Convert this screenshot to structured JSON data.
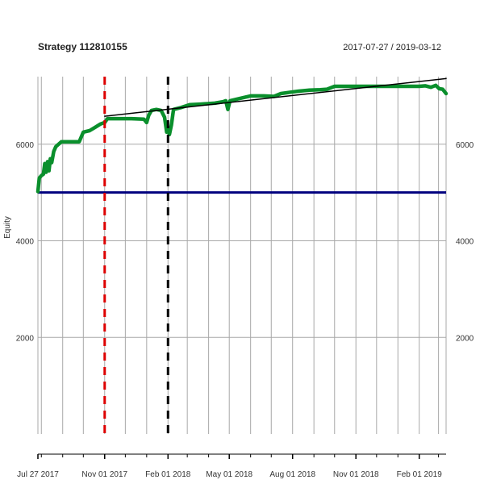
{
  "chart_data": {
    "type": "line",
    "title": "Strategy 112810155",
    "date_range": "2017-07-27 / 2019-03-12",
    "ylabel": "Equity",
    "xlabel": "",
    "x_start": "2017-07-27",
    "x_end": "2019-03-12",
    "ylim": [
      0,
      7400
    ],
    "yticks": [
      2000,
      4000,
      6000
    ],
    "ytick_labels": [
      "2000",
      "4000",
      "6000"
    ],
    "xticks": [
      "2017-07-27",
      "2017-11-01",
      "2018-02-01",
      "2018-05-01",
      "2018-08-01",
      "2018-11-01",
      "2019-02-01"
    ],
    "xtick_labels": [
      "Jul 27 2017",
      "Nov 01 2017",
      "Feb 01 2018",
      "May 01 2018",
      "Aug 01 2018",
      "Nov 01 2018",
      "Feb 01 2019"
    ],
    "grid": true,
    "series": [
      {
        "color": "#0a8f2c",
        "points": [
          [
            "2017-07-27",
            5020
          ],
          [
            "2017-07-29",
            5300
          ],
          [
            "2017-08-01",
            5350
          ],
          [
            "2017-08-04",
            5380
          ],
          [
            "2017-08-06",
            5600
          ],
          [
            "2017-08-08",
            5420
          ],
          [
            "2017-08-10",
            5640
          ],
          [
            "2017-08-12",
            5450
          ],
          [
            "2017-08-14",
            5700
          ],
          [
            "2017-08-16",
            5620
          ],
          [
            "2017-08-19",
            5850
          ],
          [
            "2017-08-22",
            5950
          ],
          [
            "2017-08-26",
            6000
          ],
          [
            "2017-08-30",
            6050
          ],
          [
            "2017-09-10",
            6050
          ],
          [
            "2017-09-25",
            6050
          ],
          [
            "2017-10-01",
            6250
          ],
          [
            "2017-10-10",
            6280
          ],
          [
            "2017-10-18",
            6350
          ],
          [
            "2017-10-26",
            6420
          ],
          [
            "2017-11-01",
            6450
          ],
          [
            "2017-11-05",
            6530
          ],
          [
            "2017-11-20",
            6530
          ],
          [
            "2017-12-10",
            6530
          ],
          [
            "2017-12-28",
            6520
          ],
          [
            "2018-01-01",
            6450
          ],
          [
            "2018-01-04",
            6600
          ],
          [
            "2018-01-08",
            6700
          ],
          [
            "2018-01-15",
            6720
          ],
          [
            "2018-01-22",
            6700
          ],
          [
            "2018-01-27",
            6560
          ],
          [
            "2018-01-30",
            6250
          ],
          [
            "2018-02-01",
            6350
          ],
          [
            "2018-02-03",
            6200
          ],
          [
            "2018-02-06",
            6400
          ],
          [
            "2018-02-09",
            6720
          ],
          [
            "2018-02-20",
            6760
          ],
          [
            "2018-03-05",
            6820
          ],
          [
            "2018-03-20",
            6830
          ],
          [
            "2018-04-10",
            6850
          ],
          [
            "2018-04-22",
            6880
          ],
          [
            "2018-04-26",
            6900
          ],
          [
            "2018-04-29",
            6720
          ],
          [
            "2018-05-02",
            6900
          ],
          [
            "2018-05-20",
            6960
          ],
          [
            "2018-06-01",
            7000
          ],
          [
            "2018-06-20",
            7000
          ],
          [
            "2018-07-05",
            6990
          ],
          [
            "2018-07-15",
            7050
          ],
          [
            "2018-07-30",
            7080
          ],
          [
            "2018-08-10",
            7100
          ],
          [
            "2018-08-25",
            7120
          ],
          [
            "2018-09-10",
            7130
          ],
          [
            "2018-09-20",
            7140
          ],
          [
            "2018-10-01",
            7200
          ],
          [
            "2018-11-01",
            7200
          ],
          [
            "2018-12-01",
            7200
          ],
          [
            "2019-01-01",
            7200
          ],
          [
            "2019-02-01",
            7200
          ],
          [
            "2019-02-10",
            7210
          ],
          [
            "2019-02-18",
            7180
          ],
          [
            "2019-02-25",
            7220
          ],
          [
            "2019-03-02",
            7150
          ],
          [
            "2019-03-07",
            7140
          ],
          [
            "2019-03-12",
            7050
          ]
        ]
      },
      {
        "color": "#000000",
        "points": [
          [
            "2017-11-01",
            6580
          ],
          [
            "2019-03-12",
            7360
          ]
        ]
      }
    ],
    "hlines": [
      {
        "y": 5000,
        "color": "#00007f"
      }
    ],
    "vlines": [
      {
        "x": "2017-11-01",
        "color": "#dd0000",
        "style": "dashed"
      },
      {
        "x": "2018-02-01",
        "color": "#000000",
        "style": "dashed"
      }
    ]
  }
}
